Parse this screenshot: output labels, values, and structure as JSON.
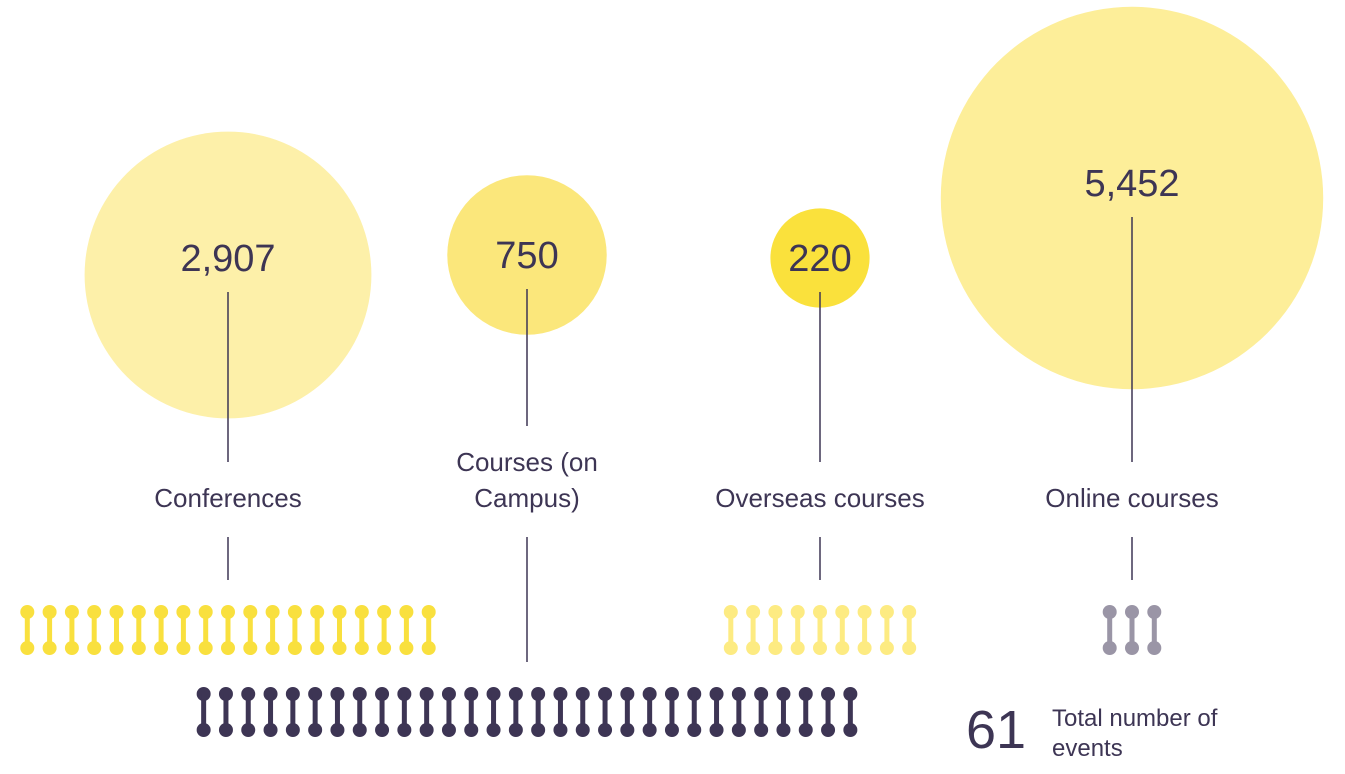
{
  "chart_data": {
    "type": "bubble",
    "categories": [
      "Conferences",
      "Courses (on Campus)",
      "Overseas courses",
      "Online courses"
    ],
    "values": [
      2907,
      750,
      220,
      5452
    ],
    "value_labels": [
      "2,907",
      "750",
      "220",
      "5,452"
    ],
    "colors": [
      "#fdf0a9",
      "#fbe77b",
      "#fae13c",
      "#fdee99"
    ],
    "events": [
      19,
      30,
      9,
      3
    ],
    "event_colors": [
      "#f9e03e",
      "#3d3554",
      "#fdeb82",
      "#9a95a6"
    ],
    "total": 61,
    "total_label": "Total number of events"
  }
}
